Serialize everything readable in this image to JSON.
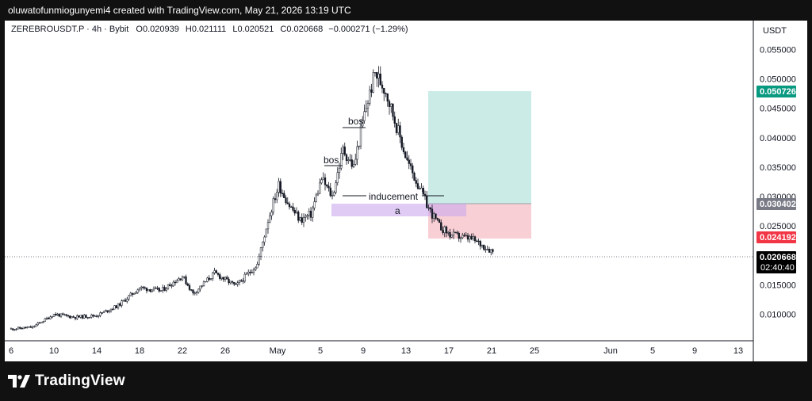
{
  "header": {
    "caption": "oluwatofunmiogunyemi4 created with TradingView.com, May 21, 2026 13:19 UTC"
  },
  "chart_data": {
    "type": "candlestick",
    "symbol_line": "ZEREBROUSDT.P · 4h · Bybit",
    "ohlc": {
      "open": "O0.020939",
      "high": "H0.021111",
      "low": "L0.020521",
      "close": "C0.020668",
      "change": "−0.000271 (−1.29%)"
    },
    "currency": "USDT",
    "y_ticks": [
      "0.055000",
      "0.050000",
      "0.045000",
      "0.040000",
      "0.035000",
      "0.030000",
      "0.025000",
      "0.020000",
      "0.015000",
      "0.010000"
    ],
    "y_tick_values": [
      0.055,
      0.05,
      0.045,
      0.04,
      0.035,
      0.03,
      0.025,
      0.02,
      0.015,
      0.01
    ],
    "ylim": [
      0.0055,
      0.0599
    ],
    "x_ticks": [
      "6",
      "10",
      "14",
      "18",
      "22",
      "26",
      "May",
      "5",
      "9",
      "13",
      "17",
      "21",
      "25",
      "Jun",
      "5",
      "9",
      "13"
    ],
    "price_labels": {
      "target": {
        "value": "0.050726",
        "color": "#089981"
      },
      "entry": {
        "value": "0.030402",
        "color": "#787b86"
      },
      "stop": {
        "value": "0.024192",
        "color": "#f23645"
      },
      "last": {
        "value": "0.020668",
        "time": "02:40:40",
        "color": "#000000"
      }
    },
    "annotations": {
      "bos_lower": "bos",
      "bos_upper": "bos",
      "inducement": "inducement",
      "zone": "a"
    },
    "series": [
      {
        "name": "price",
        "color": "#131722",
        "key_points": [
          [
            "Apr 6",
            0.0075
          ],
          [
            "Apr 8",
            0.0078
          ],
          [
            "Apr 10",
            0.01
          ],
          [
            "Apr 12",
            0.0095
          ],
          [
            "Apr 14",
            0.0098
          ],
          [
            "Apr 16",
            0.0115
          ],
          [
            "Apr 18",
            0.0145
          ],
          [
            "Apr 20",
            0.014
          ],
          [
            "Apr 22",
            0.0165
          ],
          [
            "Apr 23",
            0.0135
          ],
          [
            "Apr 25",
            0.017
          ],
          [
            "Apr 27",
            0.0148
          ],
          [
            "Apr 29",
            0.0185
          ],
          [
            "Apr 30",
            0.026
          ],
          [
            "May 1",
            0.032
          ],
          [
            "May 2",
            0.0285
          ],
          [
            "May 3",
            0.026
          ],
          [
            "May 4",
            0.027
          ],
          [
            "May 5",
            0.033
          ],
          [
            "May 6",
            0.03
          ],
          [
            "May 7",
            0.038
          ],
          [
            "May 8",
            0.035
          ],
          [
            "May 9",
            0.044
          ],
          [
            "May 10",
            0.051
          ],
          [
            "May 11",
            0.048
          ],
          [
            "May 12",
            0.042
          ],
          [
            "May 13",
            0.036
          ],
          [
            "May 14",
            0.032
          ],
          [
            "May 15",
            0.028
          ],
          [
            "May 16",
            0.025
          ],
          [
            "May 17",
            0.0235
          ],
          [
            "May 19",
            0.0228
          ],
          [
            "May 21",
            0.0207
          ]
        ]
      }
    ],
    "grid": false
  },
  "footer": {
    "brand": "TradingView"
  }
}
